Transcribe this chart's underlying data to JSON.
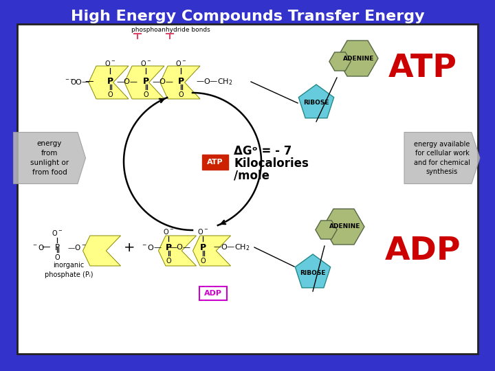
{
  "title": "High Energy Compounds Transfer Energy",
  "title_color": "#ffffff",
  "title_fontsize": 16,
  "background_color": "#3333cc",
  "inner_bg_color": "#ffffff",
  "atp_text": "ATP",
  "adp_text": "ADP",
  "atp_color": "#cc0000",
  "adp_color": "#cc0000",
  "delta_g_line1": "ΔGᵒ = - 7",
  "delta_g_line2": "Kilocalories",
  "delta_g_line3": "/mole",
  "energy_left_text": "energy\nfrom\nsunlight or\nfrom food",
  "energy_right_text": "energy available\nfor cellular work\nand for chemical\nsynthesis",
  "phospho_text": "phosphoanhydride bonds",
  "inorganic_text": "inorganic\nphosphate (Pᵢ)",
  "yellow_color": "#ffff88",
  "adenine_color": "#aabb77",
  "ribose_color": "#66ccdd",
  "bond_marker_color": "#dd4466",
  "gray_arrow_color": "#bbbbbb",
  "formula_color": "#000000"
}
